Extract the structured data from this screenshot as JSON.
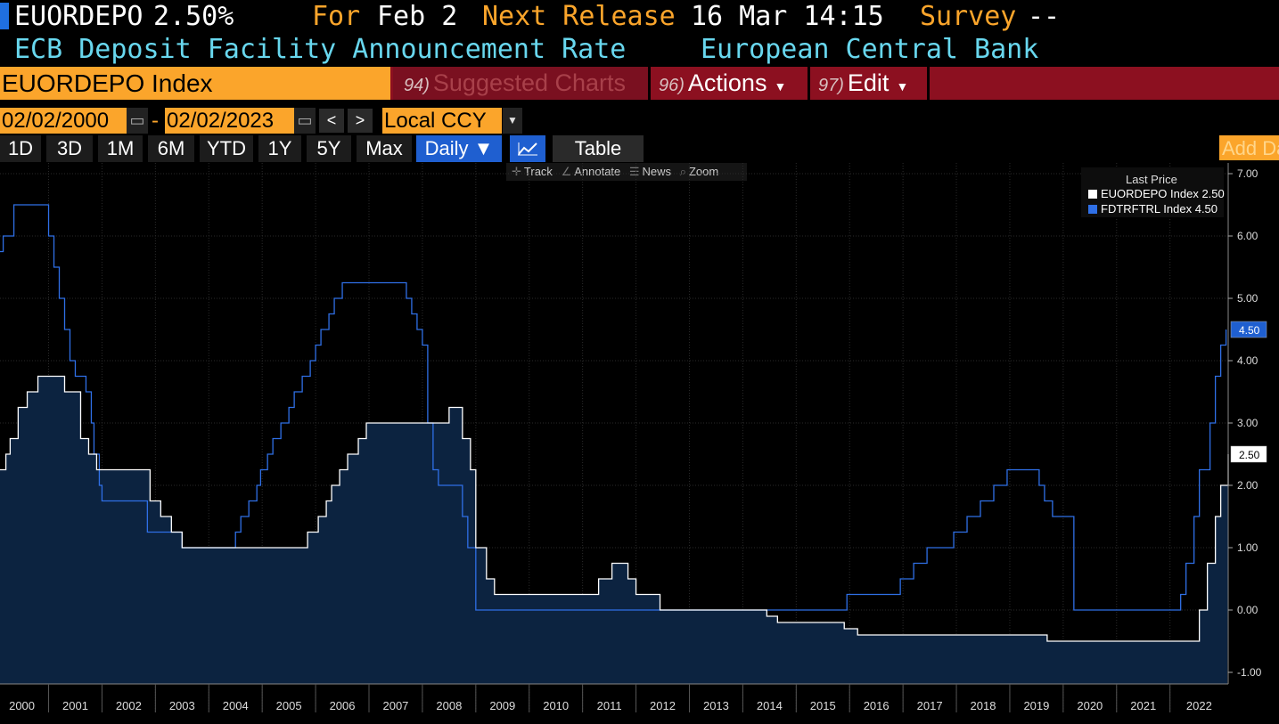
{
  "header": {
    "ticker": "EUORDEPO",
    "price": "2.50%",
    "for_label": "For",
    "for_date": "Feb 2",
    "next_label": "Next Release",
    "next_date": "16 Mar 14:15",
    "survey_label": "Survey",
    "survey_value": "--",
    "description": "ECB Deposit Facility Announcement Rate",
    "source": "European Central Bank"
  },
  "toolbar": {
    "security": "EUORDEPO Index",
    "suggested_num": "94)",
    "suggested_label": "Suggested Charts",
    "actions_num": "96)",
    "actions_label": "Actions",
    "edit_num": "97)",
    "edit_label": "Edit"
  },
  "range": {
    "start": "02/02/2000",
    "end": "02/02/2023",
    "dash": "-",
    "currency": "Local CCY",
    "prev": "<",
    "next": ">"
  },
  "periods": [
    "1D",
    "3D",
    "1M",
    "6M",
    "YTD",
    "1Y",
    "5Y",
    "Max"
  ],
  "frequency": "Daily ▼",
  "table_label": "Table",
  "add_label": "Add Data",
  "tools": [
    "Track",
    "Annotate",
    "News",
    "Zoom"
  ],
  "colors": {
    "series1": "#ffffff",
    "series2": "#2f6fe6",
    "area": "#0c2340",
    "accent": "#fba52b"
  },
  "chart_data": {
    "type": "line",
    "legend_title": "Last Price",
    "legend_position": "top-right",
    "x_ticks": [
      "2000",
      "2001",
      "2002",
      "2003",
      "2004",
      "2005",
      "2006",
      "2007",
      "2008",
      "2009",
      "2010",
      "2011",
      "2012",
      "2013",
      "2014",
      "2015",
      "2016",
      "2017",
      "2018",
      "2019",
      "2020",
      "2021",
      "2022"
    ],
    "y_ticks": [
      "7.00",
      "6.00",
      "5.00",
      "4.00",
      "3.00",
      "2.00",
      "1.00",
      "0.00",
      "-1.00"
    ],
    "ylim": [
      -1.0,
      7.0
    ],
    "xlim": [
      2000.09,
      2023.09
    ],
    "series": [
      {
        "name": "EUORDEPO Index",
        "last_label": "2.50",
        "points": [
          [
            2000.09,
            2.25
          ],
          [
            2000.2,
            2.5
          ],
          [
            2000.28,
            2.75
          ],
          [
            2000.43,
            3.25
          ],
          [
            2000.6,
            3.5
          ],
          [
            2000.8,
            3.75
          ],
          [
            2001.3,
            3.5
          ],
          [
            2001.6,
            2.75
          ],
          [
            2001.75,
            2.5
          ],
          [
            2001.9,
            2.25
          ],
          [
            2002.45,
            2.25
          ],
          [
            2002.9,
            1.75
          ],
          [
            2003.1,
            1.5
          ],
          [
            2003.3,
            1.25
          ],
          [
            2003.5,
            1.0
          ],
          [
            2005.5,
            1.0
          ],
          [
            2005.85,
            1.25
          ],
          [
            2006.05,
            1.5
          ],
          [
            2006.2,
            1.75
          ],
          [
            2006.3,
            2.0
          ],
          [
            2006.45,
            2.25
          ],
          [
            2006.6,
            2.5
          ],
          [
            2006.8,
            2.75
          ],
          [
            2006.95,
            3.0
          ],
          [
            2007.4,
            3.0
          ],
          [
            2008.5,
            3.25
          ],
          [
            2008.75,
            2.75
          ],
          [
            2008.9,
            2.25
          ],
          [
            2009.0,
            1.0
          ],
          [
            2009.2,
            0.5
          ],
          [
            2009.35,
            0.25
          ],
          [
            2011.1,
            0.25
          ],
          [
            2011.3,
            0.5
          ],
          [
            2011.55,
            0.75
          ],
          [
            2011.85,
            0.5
          ],
          [
            2012.0,
            0.25
          ],
          [
            2012.45,
            0.0
          ],
          [
            2014.45,
            -0.1
          ],
          [
            2014.65,
            -0.2
          ],
          [
            2015.9,
            -0.3
          ],
          [
            2016.15,
            -0.4
          ],
          [
            2019.7,
            -0.5
          ],
          [
            2022.5,
            -0.5
          ],
          [
            2022.55,
            0.0
          ],
          [
            2022.7,
            0.75
          ],
          [
            2022.85,
            1.5
          ],
          [
            2022.95,
            2.0
          ],
          [
            2023.09,
            2.5
          ]
        ]
      },
      {
        "name": "FDTRFTRL Index",
        "last_label": "4.50",
        "points": [
          [
            2000.09,
            5.75
          ],
          [
            2000.15,
            6.0
          ],
          [
            2000.35,
            6.5
          ],
          [
            2000.5,
            6.5
          ],
          [
            2000.6,
            6.5
          ],
          [
            2001.0,
            6.0
          ],
          [
            2001.1,
            5.5
          ],
          [
            2001.2,
            5.0
          ],
          [
            2001.3,
            4.5
          ],
          [
            2001.4,
            4.0
          ],
          [
            2001.5,
            3.75
          ],
          [
            2001.7,
            3.5
          ],
          [
            2001.8,
            3.0
          ],
          [
            2001.85,
            2.5
          ],
          [
            2001.95,
            2.0
          ],
          [
            2002.0,
            1.75
          ],
          [
            2002.85,
            1.25
          ],
          [
            2003.5,
            1.0
          ],
          [
            2004.5,
            1.25
          ],
          [
            2004.6,
            1.5
          ],
          [
            2004.75,
            1.75
          ],
          [
            2004.9,
            2.0
          ],
          [
            2004.97,
            2.25
          ],
          [
            2005.1,
            2.5
          ],
          [
            2005.2,
            2.75
          ],
          [
            2005.35,
            3.0
          ],
          [
            2005.5,
            3.25
          ],
          [
            2005.6,
            3.5
          ],
          [
            2005.75,
            3.75
          ],
          [
            2005.9,
            4.0
          ],
          [
            2006.0,
            4.25
          ],
          [
            2006.1,
            4.5
          ],
          [
            2006.25,
            4.75
          ],
          [
            2006.35,
            5.0
          ],
          [
            2006.5,
            5.25
          ],
          [
            2007.7,
            5.0
          ],
          [
            2007.8,
            4.75
          ],
          [
            2007.9,
            4.5
          ],
          [
            2008.0,
            4.25
          ],
          [
            2008.1,
            3.0
          ],
          [
            2008.2,
            2.25
          ],
          [
            2008.3,
            2.0
          ],
          [
            2008.75,
            1.5
          ],
          [
            2008.85,
            1.0
          ],
          [
            2009.0,
            0.0
          ],
          [
            2015.95,
            0.25
          ],
          [
            2016.95,
            0.5
          ],
          [
            2017.2,
            0.75
          ],
          [
            2017.45,
            1.0
          ],
          [
            2017.95,
            1.25
          ],
          [
            2018.2,
            1.5
          ],
          [
            2018.45,
            1.75
          ],
          [
            2018.7,
            2.0
          ],
          [
            2018.95,
            2.25
          ],
          [
            2019.55,
            2.0
          ],
          [
            2019.65,
            1.75
          ],
          [
            2019.8,
            1.5
          ],
          [
            2020.2,
            0.0
          ],
          [
            2022.2,
            0.25
          ],
          [
            2022.3,
            0.75
          ],
          [
            2022.45,
            1.5
          ],
          [
            2022.55,
            2.25
          ],
          [
            2022.75,
            3.0
          ],
          [
            2022.85,
            3.75
          ],
          [
            2022.95,
            4.25
          ],
          [
            2023.05,
            4.5
          ]
        ]
      }
    ]
  }
}
